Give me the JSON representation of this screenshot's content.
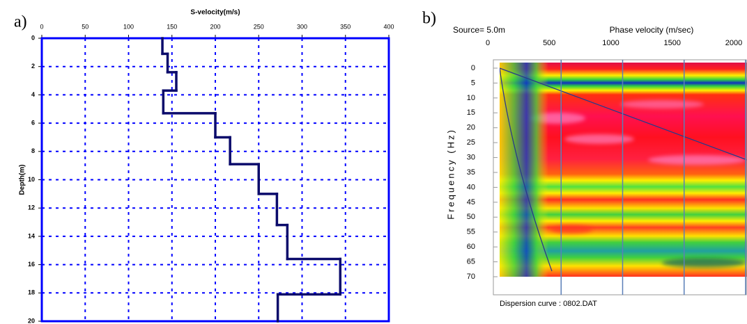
{
  "chart_data": [
    {
      "type": "step",
      "panel_label": "a)",
      "title": "S-velocity(m/s)",
      "y_label": "Depth(m)",
      "depth_boundaries": [
        0,
        1.1,
        2.4,
        3.7,
        5.3,
        7.0,
        8.9,
        11.0,
        13.2,
        15.6,
        18.1,
        20
      ],
      "velocities": [
        139,
        145,
        155,
        140,
        200,
        217,
        250,
        271,
        283,
        344,
        272
      ],
      "xlim": [
        0,
        400
      ],
      "xticks": [
        0,
        50,
        100,
        150,
        200,
        250,
        300,
        350,
        400
      ],
      "ylim": [
        0,
        20
      ],
      "yticks": [
        0,
        2,
        4,
        6,
        8,
        10,
        12,
        14,
        16,
        18,
        20
      ],
      "y_inverted": true,
      "grid": true,
      "color": "#0b0b6b",
      "grid_color": "#0000ff"
    },
    {
      "type": "image",
      "panel_label": "b)",
      "annotation": "Source= 5.0m",
      "title": "Phase velocity (m/sec)",
      "y_label": "Frequency (Hz)",
      "footer": "Dispersion curve : 0802.DAT",
      "xlim": [
        0,
        2000
      ],
      "xticks": [
        0,
        500,
        1000,
        1500,
        2000
      ],
      "ylim": [
        0,
        70
      ],
      "yticks": [
        0,
        5,
        10,
        15,
        20,
        25,
        30,
        35,
        40,
        45,
        50,
        55,
        60,
        65,
        70
      ],
      "y_inverted": true,
      "grid_color": "#5a7fb8"
    }
  ]
}
